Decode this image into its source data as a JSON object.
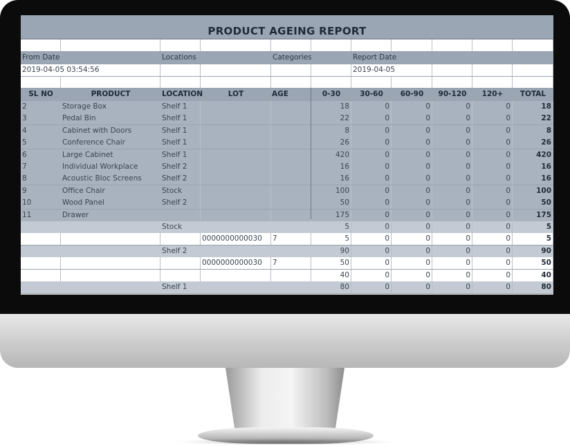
{
  "report": {
    "title": "PRODUCT AGEING REPORT",
    "filters": {
      "from_date_label": "From Date",
      "locations_label": "Locations",
      "categories_label": "Categories",
      "report_date_label": "Report Date",
      "from_date_value": "2019-04-05 03:54:56",
      "report_date_value": "2019-04-05"
    },
    "columns": [
      "SL NO",
      "PRODUCT",
      "LOCATION",
      "LOT",
      "AGE",
      "0-30",
      "30-60",
      "60-90",
      "90-120",
      "120+",
      "TOTAL"
    ],
    "rows": [
      {
        "sl": "2",
        "product": "Storage Box",
        "location": "Shelf 1",
        "lot": "",
        "age": "",
        "b1": "18",
        "b2": "0",
        "b3": "0",
        "b4": "0",
        "b5": "0",
        "total": "18"
      },
      {
        "sl": "3",
        "product": "Pedal Bin",
        "location": "Shelf 1",
        "lot": "",
        "age": "",
        "b1": "22",
        "b2": "0",
        "b3": "0",
        "b4": "0",
        "b5": "0",
        "total": "22"
      },
      {
        "sl": "4",
        "product": "Cabinet with Doors",
        "location": "Shelf 1",
        "lot": "",
        "age": "",
        "b1": "8",
        "b2": "0",
        "b3": "0",
        "b4": "0",
        "b5": "0",
        "total": "8"
      },
      {
        "sl": "5",
        "product": "Conference Chair",
        "location": "Shelf 1",
        "lot": "",
        "age": "",
        "b1": "26",
        "b2": "0",
        "b3": "0",
        "b4": "0",
        "b5": "0",
        "total": "26"
      },
      {
        "sl": "6",
        "product": "Large Cabinet",
        "location": "Shelf 1",
        "lot": "",
        "age": "",
        "b1": "420",
        "b2": "0",
        "b3": "0",
        "b4": "0",
        "b5": "0",
        "total": "420"
      },
      {
        "sl": "7",
        "product": "Individual Workplace",
        "location": "Shelf 2",
        "lot": "",
        "age": "",
        "b1": "16",
        "b2": "0",
        "b3": "0",
        "b4": "0",
        "b5": "0",
        "total": "16"
      },
      {
        "sl": "8",
        "product": "Acoustic Bloc Screens",
        "location": "Shelf 2",
        "lot": "",
        "age": "",
        "b1": "16",
        "b2": "0",
        "b3": "0",
        "b4": "0",
        "b5": "0",
        "total": "16"
      },
      {
        "sl": "9",
        "product": "Office Chair",
        "location": "Stock",
        "lot": "",
        "age": "",
        "b1": "100",
        "b2": "0",
        "b3": "0",
        "b4": "0",
        "b5": "0",
        "total": "100"
      },
      {
        "sl": "10",
        "product": "Wood Panel",
        "location": "Shelf 2",
        "lot": "",
        "age": "",
        "b1": "50",
        "b2": "0",
        "b3": "0",
        "b4": "0",
        "b5": "0",
        "total": "50"
      },
      {
        "sl": "11",
        "product": "Drawer",
        "location": "",
        "lot": "",
        "age": "",
        "b1": "175",
        "b2": "0",
        "b3": "0",
        "b4": "0",
        "b5": "0",
        "total": "175"
      },
      {
        "sl": "",
        "product": "",
        "location": "Stock",
        "lot": "",
        "age": "",
        "b1": "5",
        "b2": "0",
        "b3": "0",
        "b4": "0",
        "b5": "0",
        "total": "5"
      },
      {
        "sl": "",
        "product": "",
        "location": "",
        "lot": "0000000000030",
        "age": "7",
        "b1": "5",
        "b2": "0",
        "b3": "0",
        "b4": "0",
        "b5": "0",
        "total": "5"
      },
      {
        "sl": "",
        "product": "",
        "location": "Shelf 2",
        "lot": "",
        "age": "",
        "b1": "90",
        "b2": "0",
        "b3": "0",
        "b4": "0",
        "b5": "0",
        "total": "90"
      },
      {
        "sl": "",
        "product": "",
        "location": "",
        "lot": "0000000000030",
        "age": "7",
        "b1": "50",
        "b2": "0",
        "b3": "0",
        "b4": "0",
        "b5": "0",
        "total": "50"
      },
      {
        "sl": "",
        "product": "",
        "location": "",
        "lot": "",
        "age": "",
        "b1": "40",
        "b2": "0",
        "b3": "0",
        "b4": "0",
        "b5": "0",
        "total": "40"
      },
      {
        "sl": "",
        "product": "",
        "location": "Shelf 1",
        "lot": "",
        "age": "",
        "b1": "80",
        "b2": "0",
        "b3": "0",
        "b4": "0",
        "b5": "0",
        "total": "80"
      }
    ]
  },
  "colors": {
    "header_bg": "#9aa6b4",
    "product_row_bg": "#a9b3c0",
    "location_group_bg": "#c3cad3",
    "lot_row_bg": "#ffffff",
    "bezel": "#0b0b0b",
    "chin": "#d6d6d6"
  }
}
